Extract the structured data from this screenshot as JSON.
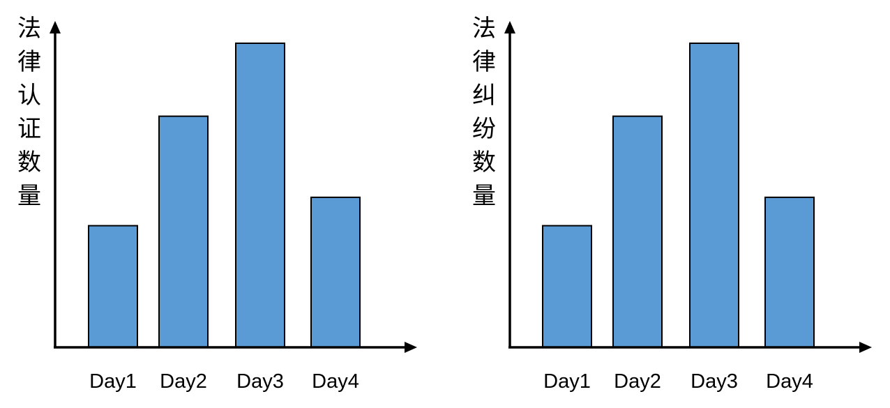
{
  "chart_data": [
    {
      "type": "bar",
      "categories": [
        "Day1",
        "Day2",
        "Day3",
        "Day4"
      ],
      "values": [
        3,
        5.7,
        7.5,
        3.7
      ],
      "title": "",
      "xlabel": "",
      "ylabel": "法律认证数量",
      "ylim": [
        0,
        8.5
      ],
      "grid": false,
      "colors": {
        "bar": "#5b9bd5",
        "outline": "#000000",
        "axis": "#000000"
      }
    },
    {
      "type": "bar",
      "categories": [
        "Day1",
        "Day2",
        "Day3",
        "Day4"
      ],
      "values": [
        3,
        5.7,
        7.5,
        3.7
      ],
      "title": "",
      "xlabel": "",
      "ylabel": "法律纠纷数量",
      "ylim": [
        0,
        8.5
      ],
      "grid": false,
      "colors": {
        "bar": "#5b9bd5",
        "outline": "#000000",
        "axis": "#000000"
      }
    }
  ]
}
